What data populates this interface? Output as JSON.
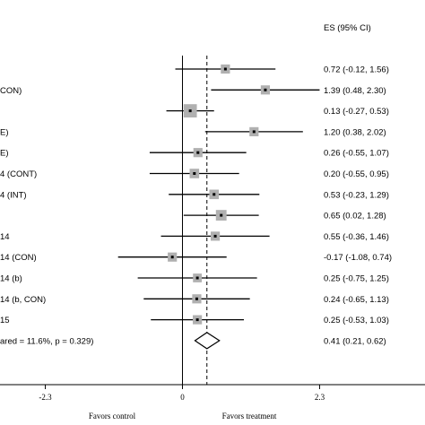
{
  "chart_data": {
    "type": "forest",
    "header": "ES (95% CI)",
    "rows": [
      {
        "label": "",
        "es": 0.72,
        "lo": -0.12,
        "hi": 1.56,
        "text": "0.72 (-0.12, 1.56)",
        "weight": 0.45
      },
      {
        "label": "CON)",
        "es": 1.39,
        "lo": 0.48,
        "hi": 2.3,
        "text": "1.39 (0.48, 2.30)",
        "weight": 0.45
      },
      {
        "label": "",
        "es": 0.13,
        "lo": -0.27,
        "hi": 0.53,
        "text": "0.13 (-0.27, 0.53)",
        "weight": 1.0
      },
      {
        "label": "E)",
        "es": 1.2,
        "lo": 0.38,
        "hi": 2.02,
        "text": "1.20 (0.38, 2.02)",
        "weight": 0.45
      },
      {
        "label": "E)",
        "es": 0.26,
        "lo": -0.55,
        "hi": 1.07,
        "text": "0.26 (-0.55, 1.07)",
        "weight": 0.45
      },
      {
        "label": "4 (CONT)",
        "es": 0.2,
        "lo": -0.55,
        "hi": 0.95,
        "text": "0.20 (-0.55, 0.95)",
        "weight": 0.5
      },
      {
        "label": "4 (INT)",
        "es": 0.53,
        "lo": -0.23,
        "hi": 1.29,
        "text": "0.53 (-0.23, 1.29)",
        "weight": 0.5
      },
      {
        "label": "",
        "es": 0.65,
        "lo": 0.02,
        "hi": 1.28,
        "text": "0.65 (0.02, 1.28)",
        "weight": 0.65
      },
      {
        "label": "14",
        "es": 0.55,
        "lo": -0.36,
        "hi": 1.46,
        "text": "0.55 (-0.36, 1.46)",
        "weight": 0.45
      },
      {
        "label": "14 (CON)",
        "es": -0.17,
        "lo": -1.08,
        "hi": 0.74,
        "text": "-0.17 (-1.08, 0.74)",
        "weight": 0.45
      },
      {
        "label": "14 (b)",
        "es": 0.25,
        "lo": -0.75,
        "hi": 1.25,
        "text": "0.25 (-0.75, 1.25)",
        "weight": 0.4
      },
      {
        "label": "14 (b, CON)",
        "es": 0.24,
        "lo": -0.65,
        "hi": 1.13,
        "text": "0.24 (-0.65, 1.13)",
        "weight": 0.45
      },
      {
        "label": "15",
        "es": 0.25,
        "lo": -0.53,
        "hi": 1.03,
        "text": "0.25 (-0.53, 1.03)",
        "weight": 0.45
      }
    ],
    "overall": {
      "label": "ared = 11.6%, p = 0.329)",
      "es": 0.41,
      "lo": 0.21,
      "hi": 0.62,
      "text": "0.41 (0.21, 0.62)"
    },
    "xaxis": {
      "ticks": [
        -2.3,
        0,
        2.3
      ],
      "tick_labels": [
        "-2.3",
        "0",
        "2.3"
      ],
      "range": [
        -3.6,
        4.3
      ],
      "null_line": 0
    },
    "favors_left": "Favors control",
    "favors_right": "Favors treatment",
    "colors": {
      "marker": "#b0b0b0",
      "line": "#000000"
    }
  }
}
